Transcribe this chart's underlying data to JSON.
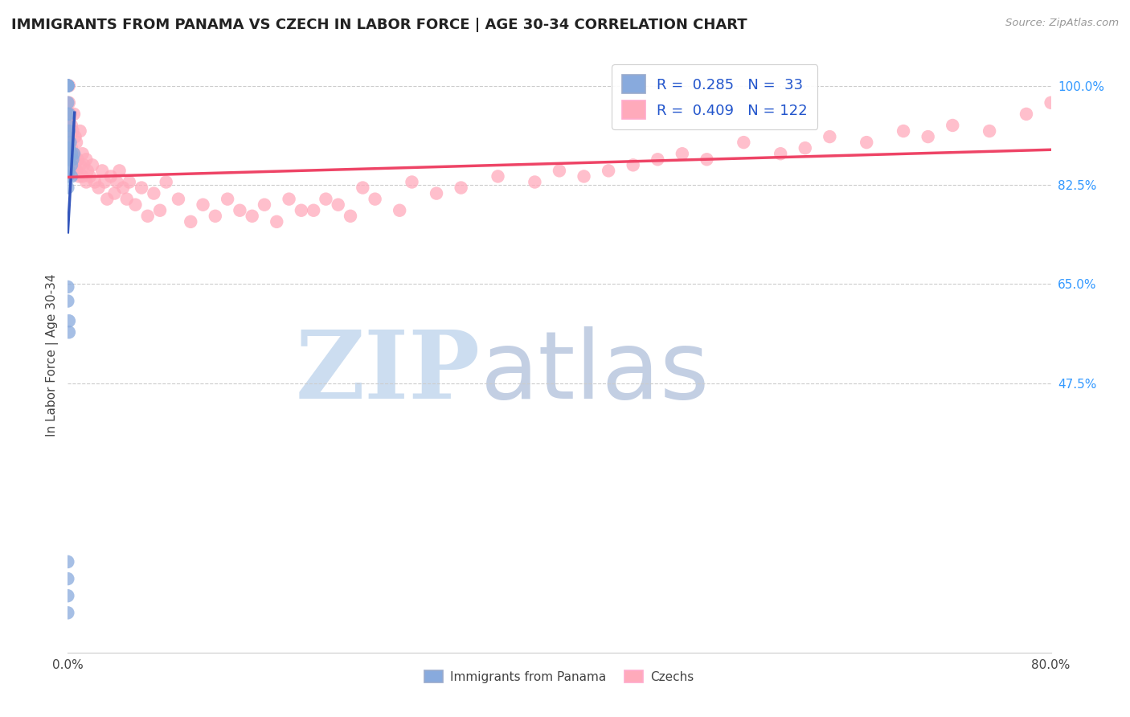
{
  "title": "IMMIGRANTS FROM PANAMA VS CZECH IN LABOR FORCE | AGE 30-34 CORRELATION CHART",
  "source": "Source: ZipAtlas.com",
  "ylabel": "In Labor Force | Age 30-34",
  "legend_r_panama": "0.285",
  "legend_n_panama": "33",
  "legend_r_czech": "0.409",
  "legend_n_czech": "122",
  "panama_color": "#88aadd",
  "czech_color": "#ffaabb",
  "trend_panama_color": "#3355bb",
  "trend_czech_color": "#ee4466",
  "panama_scatter_x": [
    0.0,
    0.0,
    0.0,
    0.0,
    0.0,
    0.0,
    0.0,
    0.0,
    0.0,
    0.0,
    0.0,
    0.001,
    0.001,
    0.001,
    0.001,
    0.001,
    0.002,
    0.003,
    0.003,
    0.003,
    0.004,
    0.005,
    0.0,
    0.0,
    0.001,
    0.001,
    0.0,
    0.0,
    0.0,
    0.0,
    0.0,
    0.0
  ],
  "panama_scatter_y": [
    1.0,
    1.0,
    1.0,
    1.0,
    1.0,
    0.97,
    0.95,
    0.93,
    0.91,
    0.89,
    0.87,
    0.95,
    0.92,
    0.89,
    0.87,
    0.85,
    0.9,
    0.88,
    0.86,
    0.84,
    0.87,
    0.88,
    0.645,
    0.62,
    0.585,
    0.565,
    0.16,
    0.13,
    0.1,
    0.07,
    0.84,
    0.82
  ],
  "czech_scatter_x": [
    0.001,
    0.001,
    0.001,
    0.002,
    0.002,
    0.003,
    0.003,
    0.004,
    0.004,
    0.005,
    0.005,
    0.006,
    0.006,
    0.007,
    0.007,
    0.008,
    0.009,
    0.01,
    0.01,
    0.012,
    0.012,
    0.013,
    0.015,
    0.015,
    0.016,
    0.018,
    0.02,
    0.022,
    0.025,
    0.028,
    0.03,
    0.032,
    0.035,
    0.038,
    0.04,
    0.042,
    0.045,
    0.048,
    0.05,
    0.055,
    0.06,
    0.065,
    0.07,
    0.075,
    0.08,
    0.09,
    0.1,
    0.11,
    0.12,
    0.13,
    0.14,
    0.15,
    0.16,
    0.17,
    0.18,
    0.19,
    0.2,
    0.21,
    0.22,
    0.23,
    0.24,
    0.25,
    0.27,
    0.28,
    0.3,
    0.32,
    0.35,
    0.38,
    0.4,
    0.42,
    0.44,
    0.46,
    0.48,
    0.5,
    0.52,
    0.55,
    0.58,
    0.6,
    0.62,
    0.65,
    0.68,
    0.7,
    0.72,
    0.75,
    0.78,
    0.8
  ],
  "czech_scatter_y": [
    0.93,
    0.97,
    1.0,
    0.91,
    0.95,
    0.89,
    0.93,
    0.87,
    0.92,
    0.88,
    0.95,
    0.86,
    0.91,
    0.85,
    0.9,
    0.87,
    0.84,
    0.86,
    0.92,
    0.84,
    0.88,
    0.86,
    0.83,
    0.87,
    0.85,
    0.84,
    0.86,
    0.83,
    0.82,
    0.85,
    0.83,
    0.8,
    0.84,
    0.81,
    0.83,
    0.85,
    0.82,
    0.8,
    0.83,
    0.79,
    0.82,
    0.77,
    0.81,
    0.78,
    0.83,
    0.8,
    0.76,
    0.79,
    0.77,
    0.8,
    0.78,
    0.77,
    0.79,
    0.76,
    0.8,
    0.78,
    0.78,
    0.8,
    0.79,
    0.77,
    0.82,
    0.8,
    0.78,
    0.83,
    0.81,
    0.82,
    0.84,
    0.83,
    0.85,
    0.84,
    0.85,
    0.86,
    0.87,
    0.88,
    0.87,
    0.9,
    0.88,
    0.89,
    0.91,
    0.9,
    0.92,
    0.91,
    0.93,
    0.92,
    0.95,
    0.97
  ],
  "xmin": 0.0,
  "xmax": 0.8,
  "ymin": 0.0,
  "ymax": 1.05,
  "xtick_positions": [
    0.0,
    0.1,
    0.2,
    0.3,
    0.4,
    0.5,
    0.6,
    0.7,
    0.8
  ],
  "xtick_labels": [
    "0.0%",
    "",
    "",
    "",
    "",
    "",
    "",
    "",
    "80.0%"
  ],
  "ytick_positions": [
    0.475,
    0.65,
    0.825,
    1.0
  ],
  "ytick_labels": [
    "47.5%",
    "65.0%",
    "82.5%",
    "100.0%"
  ],
  "grid_color": "#cccccc",
  "title_fontsize": 13,
  "axis_label_fontsize": 11,
  "tick_fontsize": 11,
  "legend_fontsize": 13
}
